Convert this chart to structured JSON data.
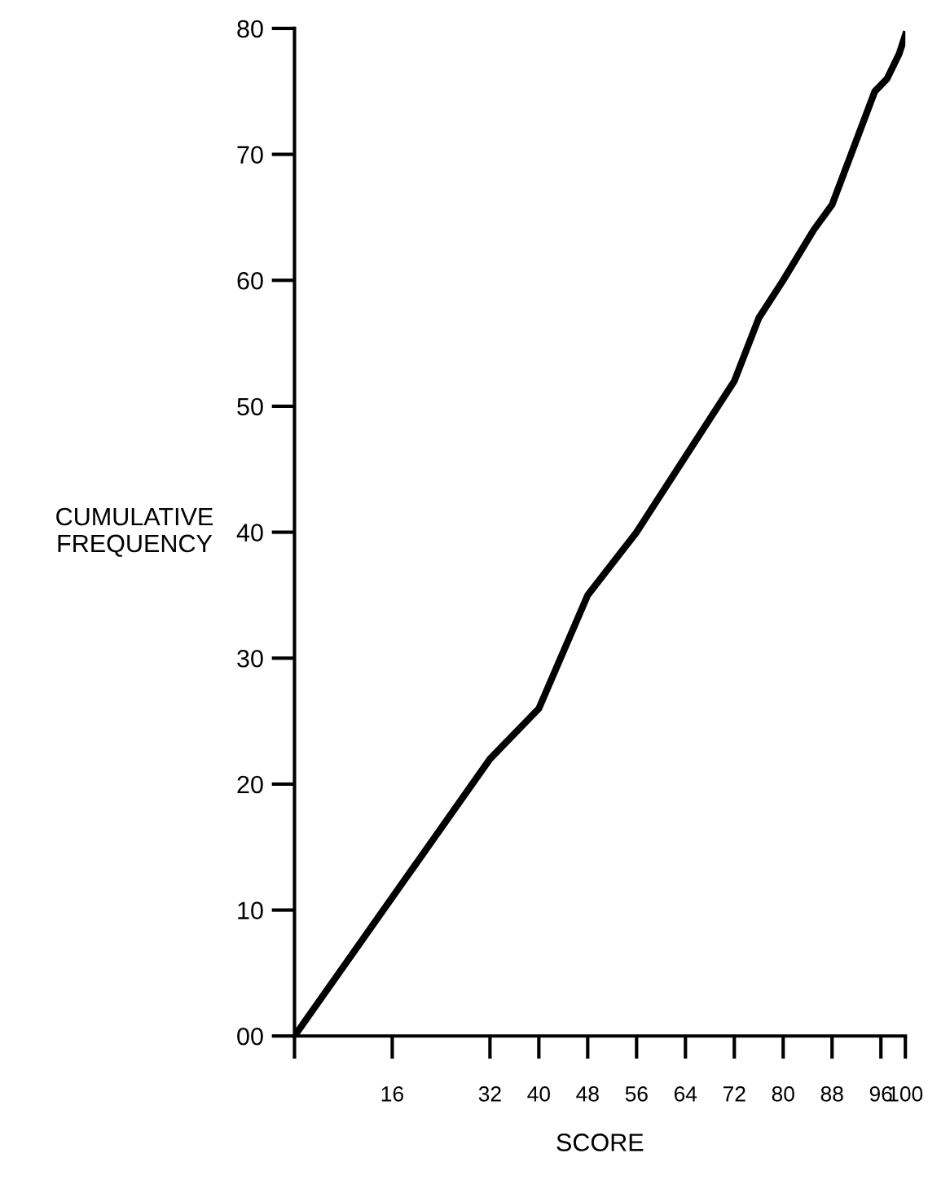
{
  "chart_data": {
    "type": "line",
    "xlabel": "SCORE",
    "ylabel": "CUMULATIVE\nFREQUENCY",
    "x": [
      0,
      32,
      40,
      48,
      56,
      72,
      76,
      80,
      85,
      88,
      95,
      97,
      99,
      100
    ],
    "series": [
      {
        "color": "#000000",
        "values": [
          0,
          22,
          26,
          35,
          40,
          52,
          57,
          60,
          64,
          66,
          75,
          76,
          78,
          79.5
        ]
      }
    ],
    "xlim": [
      0,
      100
    ],
    "ylim": [
      0,
      80
    ],
    "xticks": [
      {
        "value": 0,
        "label": null
      },
      16,
      32,
      40,
      48,
      56,
      64,
      72,
      80,
      88,
      96,
      100
    ],
    "yticks": [
      {
        "value": 0,
        "label": "00"
      },
      10,
      20,
      30,
      40,
      50,
      60,
      70,
      80
    ],
    "grid": false,
    "legend": false,
    "marker": "none",
    "line_style": "solid"
  }
}
